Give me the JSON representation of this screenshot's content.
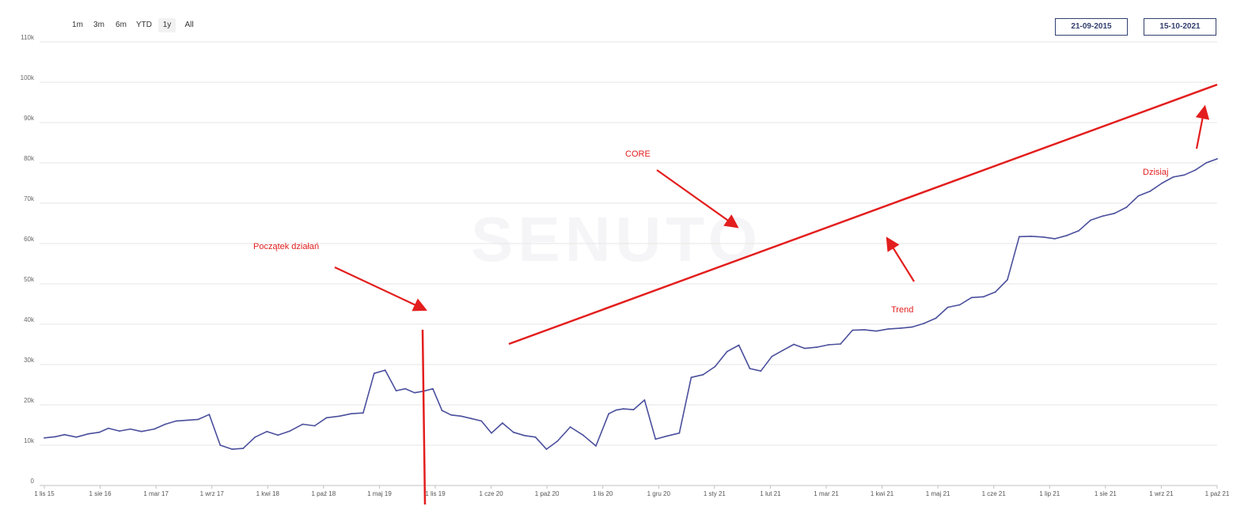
{
  "range_selector": {
    "buttons": [
      "1m",
      "3m",
      "6m",
      "YTD",
      "1y",
      "All"
    ],
    "active": "1y"
  },
  "date_range": {
    "from": "21-09-2015",
    "to": "15-10-2021"
  },
  "watermark": "SENUTO",
  "annotations": {
    "start": "Początek działań",
    "core": "CORE",
    "trend": "Trend",
    "today": "Dzisiaj"
  },
  "colors": {
    "series": "#4a4f9c",
    "annotation": "#e31e1e",
    "grid": "#e6e6e6",
    "date_box_border": "#33406f"
  },
  "chart_data": {
    "type": "line",
    "title": "",
    "xlabel": "",
    "ylabel": "",
    "ylim": [
      0,
      110000
    ],
    "y_ticks": [
      "0",
      "10k",
      "20k",
      "30k",
      "40k",
      "50k",
      "60k",
      "70k",
      "80k",
      "90k",
      "100k",
      "110k"
    ],
    "x_ticks": [
      "1 lis 15",
      "1 sie 16",
      "1 mar 17",
      "1 wrz 17",
      "1 kwi 18",
      "1 paź 18",
      "1 maj 19",
      "1 lis 19",
      "1 cze 20",
      "1 paź 20",
      "1 lis 20",
      "1 gru 20",
      "1 sty 21",
      "1 lut 21",
      "1 mar 21",
      "1 kwi 21",
      "1 maj 21",
      "1 cze 21",
      "1 lip 21",
      "1 sie 21",
      "1 wrz 21",
      "1 paź 21"
    ],
    "grid": true,
    "legend": "none",
    "series": [
      {
        "x": [
          0,
          1.2,
          2.2,
          3.5,
          4.8,
          6,
          7,
          8.2,
          9.4,
          10.6,
          12,
          13.2,
          14.4,
          15.6,
          16.8,
          18,
          19.2,
          20.5,
          21.7,
          23,
          24.3,
          25.5,
          26.8,
          28.2,
          29.5,
          30.8,
          32.2,
          33.5,
          34.8,
          36,
          37.2,
          38.4,
          39.4,
          40.4,
          41.4,
          42.4,
          43.4,
          44.4,
          45.5,
          46.6,
          47.7,
          48.8,
          50,
          51.2,
          52.4,
          53.6,
          54.8,
          56,
          57.4,
          58.8,
          60.2,
          61.6,
          62.4,
          63.2,
          64.3,
          65.5,
          66.7,
          68,
          69.3,
          70.6,
          71.9,
          73.2,
          74.5,
          75.8,
          77,
          78.2,
          79.4,
          80.6,
          81.8,
          83,
          84.3,
          85.6,
          86.9,
          88.2,
          89.5,
          90.8,
          92.1,
          93.4,
          94.7,
          96,
          97.3,
          98.6,
          99.9,
          101.2,
          102.5,
          103.8,
          105.1,
          106.4,
          107.7,
          109,
          110.3,
          111.6,
          112.9,
          114.2,
          115.5,
          116.8,
          118.1,
          119.4,
          120.7,
          122,
          123.2,
          124.4,
          125.6,
          126.8,
          128
        ],
        "y": [
          11800,
          12100,
          12600,
          12000,
          12800,
          13200,
          14200,
          13500,
          14000,
          13400,
          14000,
          15200,
          16000,
          16200,
          16400,
          17600,
          10000,
          9000,
          9200,
          12000,
          13400,
          12500,
          13500,
          15200,
          14800,
          16800,
          17200,
          17800,
          18000,
          27800,
          28600,
          23500,
          24000,
          23000,
          23400,
          24000,
          18600,
          17500,
          17200,
          16600,
          16000,
          13000,
          15500,
          13200,
          12400,
          12000,
          9000,
          11000,
          14500,
          12500,
          9800,
          17800,
          18700,
          19000,
          18800,
          21200,
          11500,
          12300,
          13000,
          26800,
          27500,
          29500,
          33200,
          34800,
          29000,
          28400,
          32000,
          33500,
          35000,
          34000,
          34300,
          34900,
          35100,
          38500,
          38600,
          38300,
          38800,
          39000,
          39300,
          40200,
          41500,
          44200,
          44800,
          46600,
          46800,
          48000,
          51000,
          61700,
          61800,
          61600,
          61200,
          62000,
          63200,
          65800,
          66800,
          67500,
          69000,
          71800,
          73000,
          75000,
          76500,
          77000,
          78200,
          80000,
          81000
        ]
      }
    ]
  }
}
